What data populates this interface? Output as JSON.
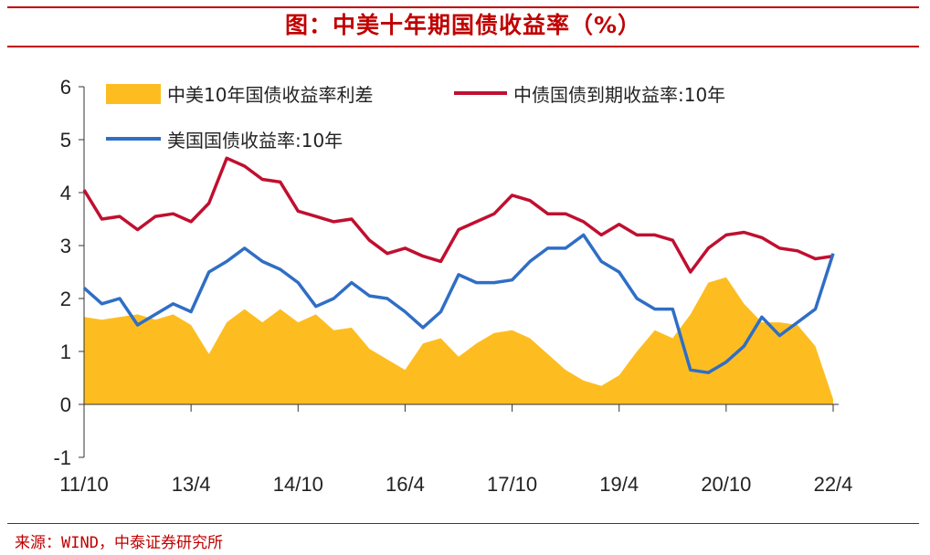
{
  "title": "图：中美十年期国债收益率（%）",
  "source": "来源：WIND，中泰证券研究所",
  "colors": {
    "title": "#c00000",
    "spread": "#fdbd21",
    "cn": "#c00f30",
    "us": "#2f6ec5"
  },
  "chart_data": {
    "type": "line",
    "title": "图：中美十年期国债收益率（%）",
    "xlabel": "",
    "ylabel": "",
    "ylim": [
      -1,
      6
    ],
    "yticks": [
      -1,
      0,
      1,
      2,
      3,
      4,
      5,
      6
    ],
    "x_tick_labels": [
      "11/10",
      "13/4",
      "14/10",
      "16/4",
      "17/10",
      "19/4",
      "20/10",
      "22/4"
    ],
    "x_start": "2011-10",
    "grid": false,
    "legend_position": "top",
    "series": [
      {
        "name": "中美10年国债收益率利差",
        "kind": "area",
        "x": [
          "2011-10",
          "2012-01",
          "2012-04",
          "2012-07",
          "2012-10",
          "2013-01",
          "2013-04",
          "2013-07",
          "2013-10",
          "2014-01",
          "2014-04",
          "2014-07",
          "2014-10",
          "2015-01",
          "2015-04",
          "2015-07",
          "2015-10",
          "2016-01",
          "2016-04",
          "2016-07",
          "2016-10",
          "2017-01",
          "2017-04",
          "2017-07",
          "2017-10",
          "2018-01",
          "2018-04",
          "2018-07",
          "2018-10",
          "2019-01",
          "2019-04",
          "2019-07",
          "2019-10",
          "2020-01",
          "2020-04",
          "2020-07",
          "2020-10",
          "2021-01",
          "2021-04",
          "2021-07",
          "2021-10",
          "2022-01",
          "2022-04"
        ],
        "values": [
          1.65,
          1.6,
          1.65,
          1.7,
          1.6,
          1.7,
          1.5,
          0.95,
          1.55,
          1.8,
          1.55,
          1.8,
          1.55,
          1.7,
          1.4,
          1.45,
          1.05,
          0.85,
          0.65,
          1.15,
          1.25,
          0.9,
          1.15,
          1.35,
          1.4,
          1.25,
          0.95,
          0.65,
          0.45,
          0.35,
          0.55,
          1.0,
          1.4,
          1.25,
          1.7,
          2.3,
          2.4,
          1.9,
          1.55,
          1.55,
          1.5,
          1.1,
          0.1
        ]
      },
      {
        "name": "中债国债到期收益率:10年",
        "kind": "line",
        "x": [
          "2011-10",
          "2012-01",
          "2012-04",
          "2012-07",
          "2012-10",
          "2013-01",
          "2013-04",
          "2013-07",
          "2013-10",
          "2014-01",
          "2014-04",
          "2014-07",
          "2014-10",
          "2015-01",
          "2015-04",
          "2015-07",
          "2015-10",
          "2016-01",
          "2016-04",
          "2016-07",
          "2016-10",
          "2017-01",
          "2017-04",
          "2017-07",
          "2017-10",
          "2018-01",
          "2018-04",
          "2018-07",
          "2018-10",
          "2019-01",
          "2019-04",
          "2019-07",
          "2019-10",
          "2020-01",
          "2020-04",
          "2020-07",
          "2020-10",
          "2021-01",
          "2021-04",
          "2021-07",
          "2021-10",
          "2022-01",
          "2022-04"
        ],
        "values": [
          4.05,
          3.5,
          3.55,
          3.3,
          3.55,
          3.6,
          3.45,
          3.8,
          4.65,
          4.5,
          4.25,
          4.2,
          3.65,
          3.55,
          3.45,
          3.5,
          3.1,
          2.85,
          2.95,
          2.8,
          2.7,
          3.3,
          3.45,
          3.6,
          3.95,
          3.85,
          3.6,
          3.6,
          3.45,
          3.2,
          3.4,
          3.2,
          3.2,
          3.1,
          2.5,
          2.95,
          3.2,
          3.25,
          3.15,
          2.95,
          2.9,
          2.75,
          2.8
        ]
      },
      {
        "name": "美国国债收益率:10年",
        "kind": "line",
        "x": [
          "2011-10",
          "2012-01",
          "2012-04",
          "2012-07",
          "2012-10",
          "2013-01",
          "2013-04",
          "2013-07",
          "2013-10",
          "2014-01",
          "2014-04",
          "2014-07",
          "2014-10",
          "2015-01",
          "2015-04",
          "2015-07",
          "2015-10",
          "2016-01",
          "2016-04",
          "2016-07",
          "2016-10",
          "2017-01",
          "2017-04",
          "2017-07",
          "2017-10",
          "2018-01",
          "2018-04",
          "2018-07",
          "2018-10",
          "2019-01",
          "2019-04",
          "2019-07",
          "2019-10",
          "2020-01",
          "2020-04",
          "2020-07",
          "2020-10",
          "2021-01",
          "2021-04",
          "2021-07",
          "2021-10",
          "2022-01",
          "2022-04"
        ],
        "values": [
          2.2,
          1.9,
          2.0,
          1.5,
          1.7,
          1.9,
          1.75,
          2.5,
          2.7,
          2.95,
          2.7,
          2.55,
          2.3,
          1.85,
          2.0,
          2.3,
          2.05,
          2.0,
          1.75,
          1.45,
          1.75,
          2.45,
          2.3,
          2.3,
          2.35,
          2.7,
          2.95,
          2.95,
          3.2,
          2.7,
          2.5,
          2.0,
          1.8,
          1.8,
          0.65,
          0.6,
          0.8,
          1.1,
          1.65,
          1.3,
          1.55,
          1.8,
          2.85
        ]
      }
    ]
  }
}
